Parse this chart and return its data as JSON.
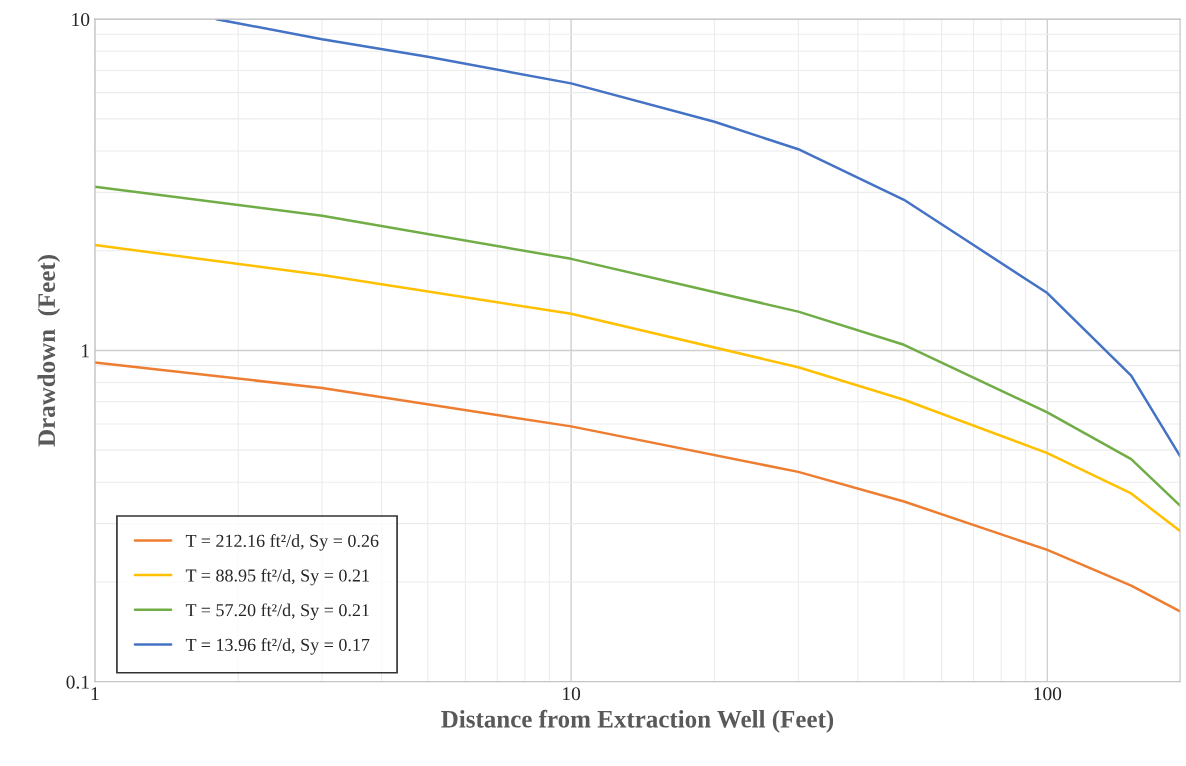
{
  "chart_data": {
    "type": "line",
    "xlabel": "Distance from Extraction Well (Feet)",
    "ylabel": "Drawdown  (Feet)",
    "log": "xy",
    "grid": true,
    "legend": "bottom left",
    "marker": "none",
    "line_style": "solid",
    "xlim": [
      1,
      190
    ],
    "ylim": [
      0.1,
      10
    ],
    "xticks": [
      1,
      10,
      100
    ],
    "yticks": [
      0.1,
      1,
      10
    ],
    "series": [
      {
        "name": "T = 212.16 ft²/d, Sy = 0.26",
        "color": "#ed7d31",
        "x": [
          1,
          3,
          10,
          30,
          50,
          100,
          150,
          190
        ],
        "values": [
          0.92,
          0.77,
          0.59,
          0.43,
          0.35,
          0.25,
          0.195,
          0.163
        ]
      },
      {
        "name": "T = 88.95 ft²/d, Sy = 0.21",
        "color": "#ffc000",
        "x": [
          1,
          3,
          10,
          30,
          50,
          100,
          150,
          190
        ],
        "values": [
          2.08,
          1.69,
          1.29,
          0.89,
          0.71,
          0.49,
          0.37,
          0.285
        ]
      },
      {
        "name": "T = 57.20 ft²/d, Sy = 0.21",
        "color": "#70ad47",
        "x": [
          1,
          3,
          10,
          30,
          50,
          100,
          150,
          190
        ],
        "values": [
          3.12,
          2.55,
          1.89,
          1.31,
          1.04,
          0.65,
          0.47,
          0.34
        ]
      },
      {
        "name": "T = 13.96 ft²/d, Sy = 0.17",
        "color": "#4472c4",
        "x": [
          1.8,
          3,
          5,
          10,
          20,
          30,
          50,
          70,
          100,
          150,
          190
        ],
        "values": [
          10,
          8.7,
          7.7,
          6.4,
          4.9,
          4.05,
          2.85,
          2.08,
          1.49,
          0.84,
          0.48
        ]
      }
    ]
  }
}
